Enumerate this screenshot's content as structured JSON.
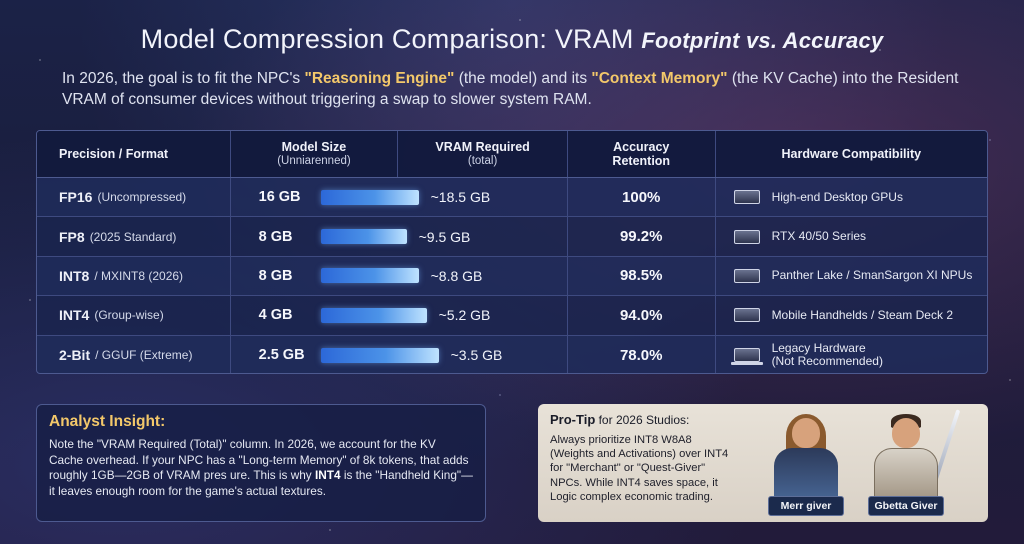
{
  "title": {
    "main": "Model Compression Comparison: VRAM",
    "italic": "Footprint vs. Accuracy"
  },
  "intro": {
    "p1": "In 2026, the goal is to fit the NPC's ",
    "hl1": "\"Reasoning Engine\"",
    "p2": " (the model) and its ",
    "hl2": "\"Context Memory\"",
    "p3": " (the KV Cache) into the Resident VRAM of consumer devices without triggering a swap to slower system RAM."
  },
  "table": {
    "headers": {
      "precision": "Precision / Format",
      "model_size": "Model Size",
      "model_size_sub": "(Unniarenned)",
      "vram": "VRAM Required",
      "vram_sub": "(total)",
      "accuracy": "Accuracy",
      "accuracy_sub": "Retention",
      "hardware": "Hardware Compatibility"
    },
    "rows": [
      {
        "fmt": "FP16",
        "note": "(Uncompressed)",
        "size": "16 GB",
        "size_frac": 0.41,
        "vram": "~18.5 GB",
        "accuracy": "100%",
        "hw": "High-end Desktop GPUs",
        "hw2": "",
        "icon": "gpu-icon"
      },
      {
        "fmt": "FP8",
        "note": "(2025 Standard)",
        "size": "8 GB",
        "size_frac": 0.36,
        "vram": "~9.5 GB",
        "accuracy": "99.2%",
        "hw": "RTX 40/50 Series",
        "hw2": "",
        "icon": "gpu-card-icon"
      },
      {
        "fmt": "INT8",
        "note": "/ MXINT8 (2026)",
        "size": "8 GB",
        "size_frac": 0.41,
        "vram": "~8.8 GB",
        "accuracy": "98.5%",
        "hw": "Panther Lake / SmanSargon XI NPUs",
        "hw2": "",
        "icon": "npu-board-icon"
      },
      {
        "fmt": "INT4",
        "note": "(Group-wise)",
        "size": "4 GB",
        "size_frac": 0.44,
        "vram": "~5.2 GB",
        "accuracy": "94.0%",
        "hw": "Mobile Handhelds / Steam Deck 2",
        "hw2": "",
        "icon": "handheld-icon"
      },
      {
        "fmt": "2-Bit",
        "note": "/ GGUF (Extreme)",
        "size": "2.5 GB",
        "size_frac": 0.49,
        "vram": "~3.5 GB",
        "accuracy": "78.0%",
        "hw": "Legacy Hardware",
        "hw2": "(Not Recommended)",
        "icon": "laptop-icon"
      }
    ]
  },
  "insight": {
    "title": "Analyst Insight:",
    "t1": "Note the \"VRAM Required (Total)\" column. In 2026, we account for the KV Cache overhead. If your NPC has a \"Long-term Memory\" of 8k tokens, that adds roughly 1GB—2GB of VRAM pres ure. This is why ",
    "b1": "INT4",
    "t2": " is the \"Handheld King\"— it leaves enough room for the game's actual textures."
  },
  "protip": {
    "title": "Pro-Tip",
    "title_sub": " for 2026 Studios:",
    "text": "Always prioritize INT8 W8A8 (Weights and Activations) over INT4 for \"Merchant\" or \"Quest-Giver\" NPCs. While INT4 saves space, it Logic complex economic trading.",
    "char1_label": "Merr giver",
    "char2_label": "Gbetta Giver"
  }
}
